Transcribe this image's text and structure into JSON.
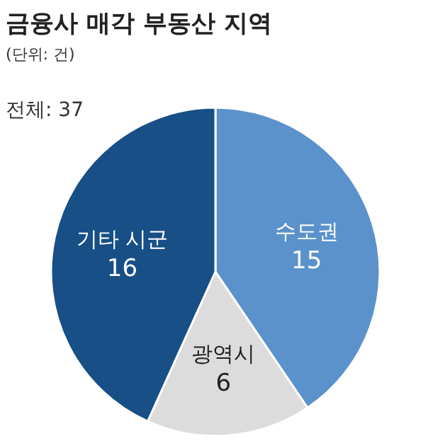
{
  "chart_data": {
    "type": "pie",
    "title": "금융사 매각 부동산 지역",
    "subtitle": "(단위: 건)",
    "annotations": [
      "전체: 37"
    ],
    "categories": [
      "수도권",
      "광역시",
      "기타 시군"
    ],
    "values": [
      15,
      6,
      16
    ],
    "colors": [
      "#5b92cc",
      "#dcdcdc",
      "#174f86"
    ],
    "data_labels": true
  }
}
